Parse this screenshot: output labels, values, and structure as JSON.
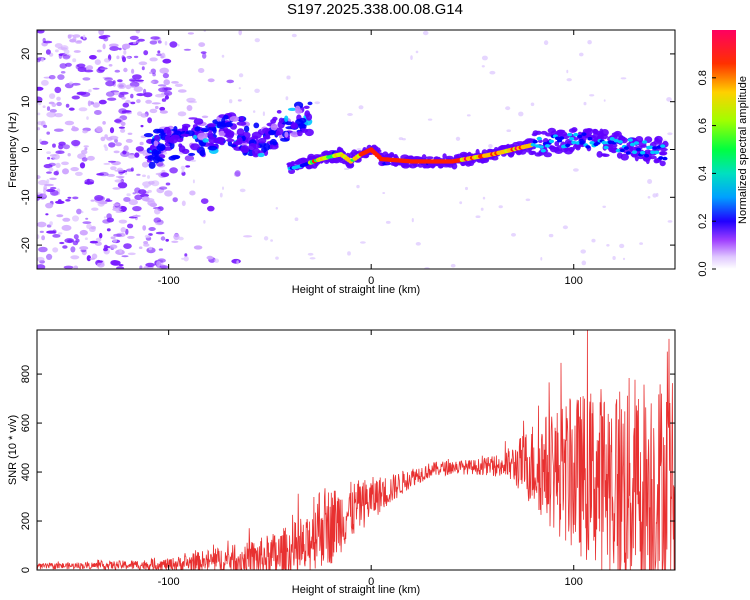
{
  "title": "S197.2025.338.00.08.G14",
  "chart_data": [
    {
      "type": "heatmap",
      "name": "spectrogram",
      "xlabel": "Height of straight line (km)",
      "ylabel": "Frequency (Hz)",
      "xlim": [
        -165,
        150
      ],
      "ylim": [
        -25,
        25
      ],
      "xticks": [
        -100,
        0,
        100
      ],
      "yticks": [
        -20,
        -10,
        0,
        10,
        20
      ],
      "colorbar": {
        "label": "Normalized spectral amplitude",
        "range": [
          0,
          1
        ],
        "ticks": [
          "0.0",
          "0.2",
          "0.4",
          "0.6",
          "0.8"
        ],
        "colormap": [
          "#ffffff",
          "#c080ff",
          "#6000ff",
          "#0000ff",
          "#00c8ff",
          "#00ff60",
          "#c0ff00",
          "#ffc000",
          "#ff2000",
          "#ff0060"
        ]
      },
      "ridge": {
        "description_points": [
          [
            -40,
            -4
          ],
          [
            -35,
            -3.5
          ],
          [
            -25,
            -2
          ],
          [
            -15,
            -1
          ],
          [
            -10,
            -2.5
          ],
          [
            -5,
            -1
          ],
          [
            0,
            0
          ],
          [
            5,
            -2
          ],
          [
            20,
            -2.5
          ],
          [
            40,
            -2.5
          ],
          [
            60,
            -1
          ],
          [
            80,
            1
          ],
          [
            100,
            2
          ],
          [
            120,
            1
          ],
          [
            145,
            -0.5
          ]
        ],
        "peak_amplitude": 0.95
      },
      "blob_line": [
        [
          -110,
          0
        ],
        [
          -90,
          2
        ],
        [
          -70,
          4
        ],
        [
          -55,
          2
        ],
        [
          -40,
          6
        ],
        [
          -30,
          7
        ]
      ],
      "noise_region": [
        -165,
        -100
      ]
    },
    {
      "type": "line",
      "name": "snr",
      "xlabel": "Height of straight line (km)",
      "ylabel": "SNR (10 * v/v)",
      "xlim": [
        -165,
        150
      ],
      "ylim": [
        0,
        980
      ],
      "xticks": [
        -100,
        0,
        100
      ],
      "yticks": [
        0,
        200,
        400,
        600,
        800
      ],
      "color": "#e83030",
      "envelope": {
        "x": [
          -165,
          -140,
          -100,
          -80,
          -60,
          -45,
          -38,
          -32,
          -28,
          -20,
          -10,
          0,
          10,
          20,
          30,
          40,
          50,
          60,
          70,
          80,
          90,
          100,
          110,
          120,
          130,
          140,
          150
        ],
        "base": [
          15,
          18,
          22,
          35,
          45,
          55,
          70,
          80,
          180,
          180,
          240,
          290,
          330,
          380,
          410,
          420,
          420,
          425,
          430,
          430,
          410,
          390,
          380,
          360,
          340,
          330,
          320
        ],
        "amplitude": [
          12,
          14,
          25,
          50,
          70,
          110,
          130,
          120,
          180,
          160,
          120,
          90,
          60,
          40,
          30,
          30,
          30,
          40,
          80,
          180,
          250,
          320,
          370,
          420,
          460,
          480,
          480
        ]
      }
    }
  ]
}
